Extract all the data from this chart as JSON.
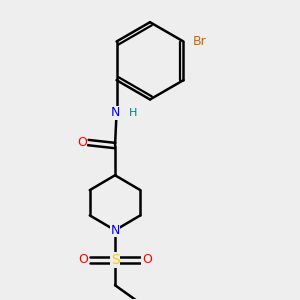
{
  "background_color": "#eeeeee",
  "bond_color": "#000000",
  "bond_lw": 1.8,
  "atom_colors": {
    "O": "#ff0000",
    "N": "#0000ff",
    "S": "#ffcc00",
    "Br": "#cc6600",
    "H": "#008080",
    "C": "#000000"
  },
  "font_size": 9,
  "font_size_small": 8
}
